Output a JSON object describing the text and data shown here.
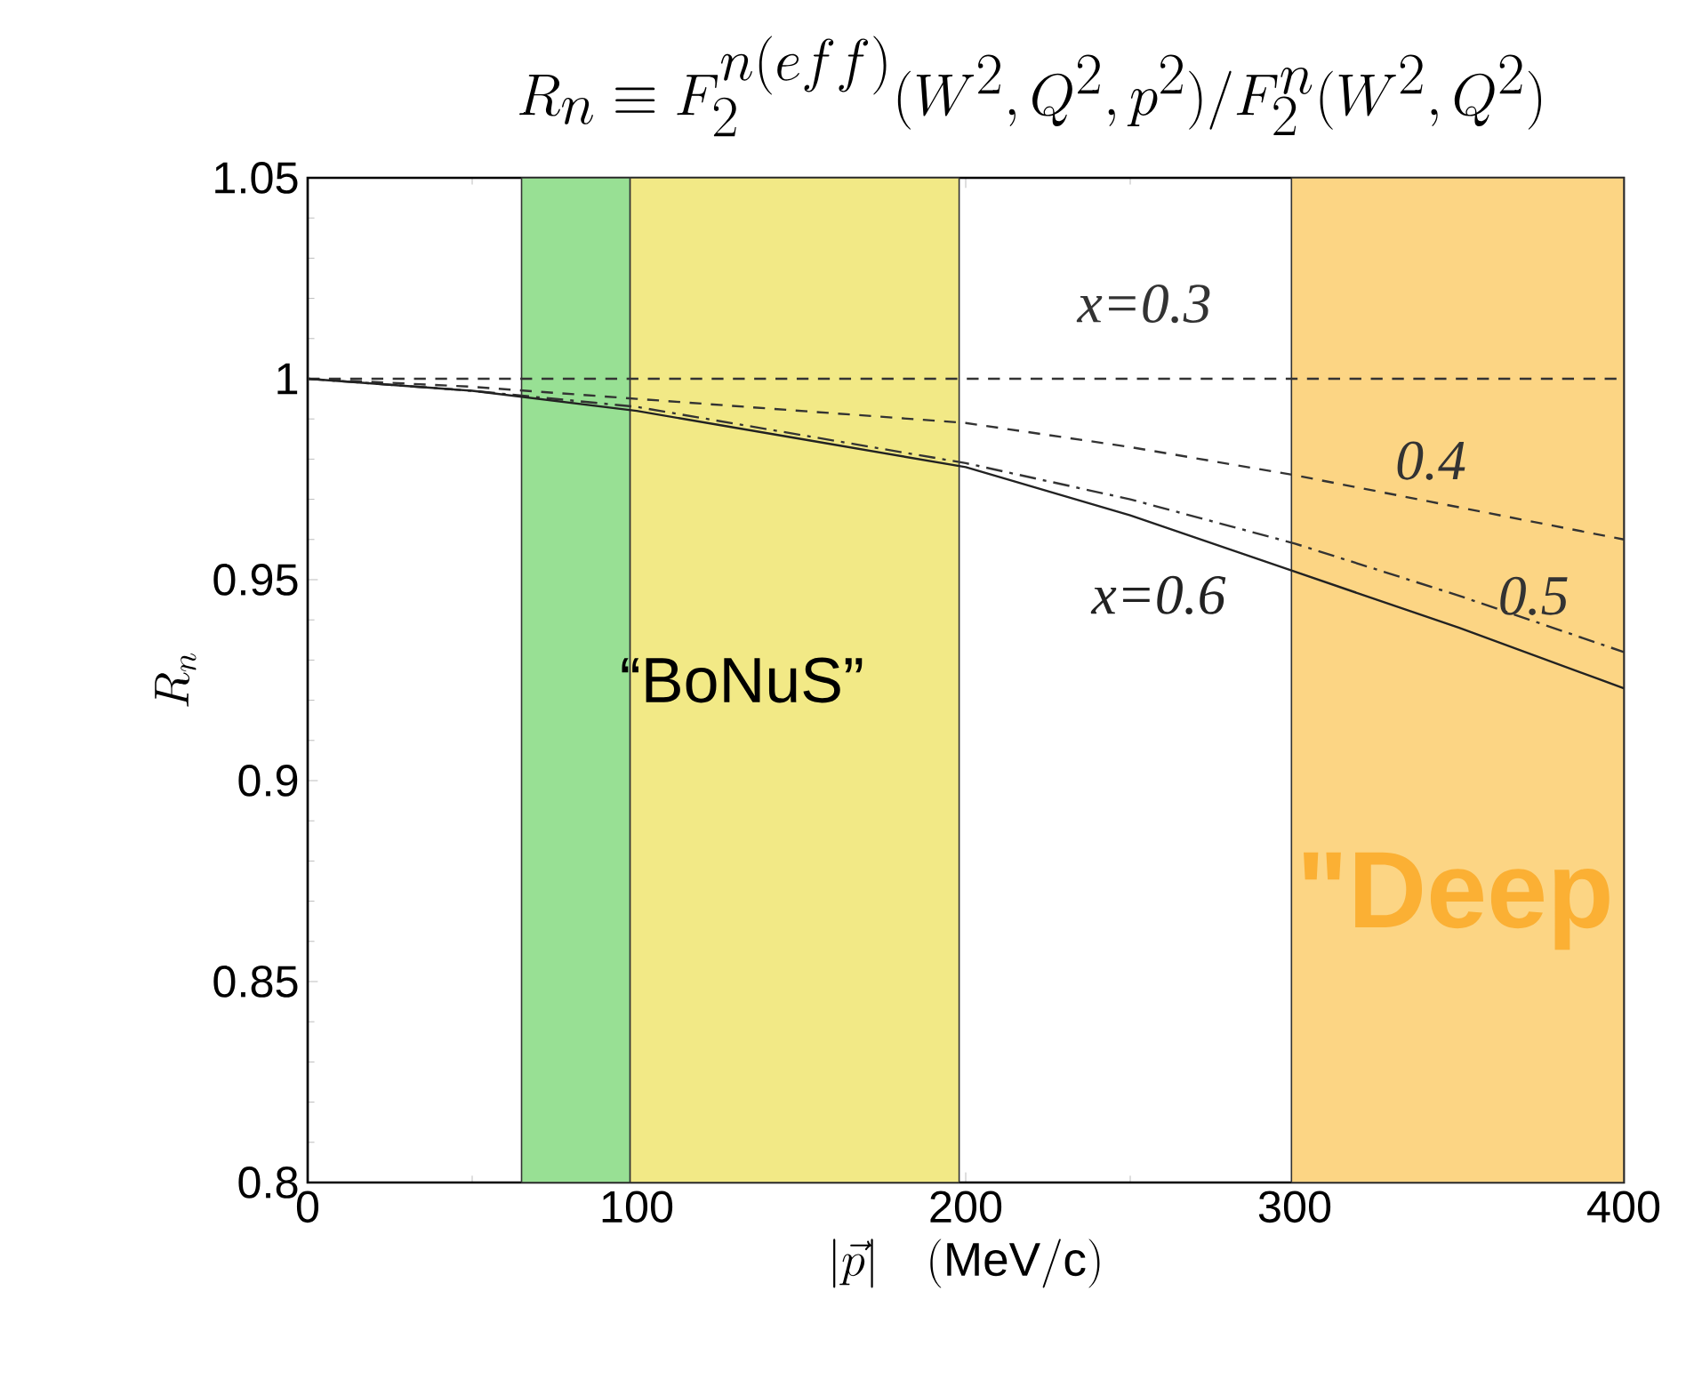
{
  "chart_data": {
    "type": "line",
    "title": "R_n \\equiv F_2^{n(eff)}(W^2,Q^2,p^2)/F_2^n(W^2,Q^2)",
    "xlabel": "|\\vec{p}|\\quad(\\mathrm{MeV/c})",
    "ylabel": "R_n",
    "x": [
      0,
      50,
      100,
      150,
      200,
      250,
      300,
      350,
      400
    ],
    "series": [
      {
        "name": "x=0.3",
        "color": "#333333",
        "line_style": "dashed",
        "values": [
          1.0,
          1.0,
          1.0,
          1.0,
          1.0,
          1.0,
          1.0,
          1.0,
          1.0
        ]
      },
      {
        "name": "0.4",
        "color": "#333333",
        "line_style": "dashed",
        "values": [
          1.0,
          0.998,
          0.995,
          0.992,
          0.989,
          0.983,
          0.976,
          0.968,
          0.96
        ]
      },
      {
        "name": "0.5",
        "color": "#333333",
        "line_style": "dashdot",
        "values": [
          1.0,
          0.997,
          0.993,
          0.986,
          0.979,
          0.97,
          0.959,
          0.946,
          0.932
        ]
      },
      {
        "name": "x=0.6",
        "color": "#222222",
        "line_style": "solid",
        "values": [
          1.0,
          0.997,
          0.992,
          0.985,
          0.978,
          0.966,
          0.952,
          0.938,
          0.923
        ]
      }
    ],
    "xlim": [
      0,
      400
    ],
    "ylim": [
      0.8,
      1.05
    ],
    "xticks": [
      0,
      100,
      200,
      300,
      400
    ],
    "yticks": [
      {
        "value": 0.8,
        "label": "0.8"
      },
      {
        "value": 0.85,
        "label": "0.85"
      },
      {
        "value": 0.9,
        "label": "0.9"
      },
      {
        "value": 0.95,
        "label": "0.95"
      },
      {
        "value": 1,
        "label": "1"
      },
      {
        "value": 1.05,
        "label": "1.05"
      }
    ],
    "bands": [
      {
        "axis": "x",
        "from": 65,
        "to": 98,
        "color": "#98e094"
      },
      {
        "axis": "x",
        "from": 98,
        "to": 198,
        "color": "#f2e986"
      },
      {
        "axis": "x",
        "from": 299,
        "to": 400,
        "color": "#fcd584"
      }
    ],
    "annotations": [
      "“BoNuS”",
      "\"Deep"
    ],
    "grid": false,
    "legend": false
  }
}
